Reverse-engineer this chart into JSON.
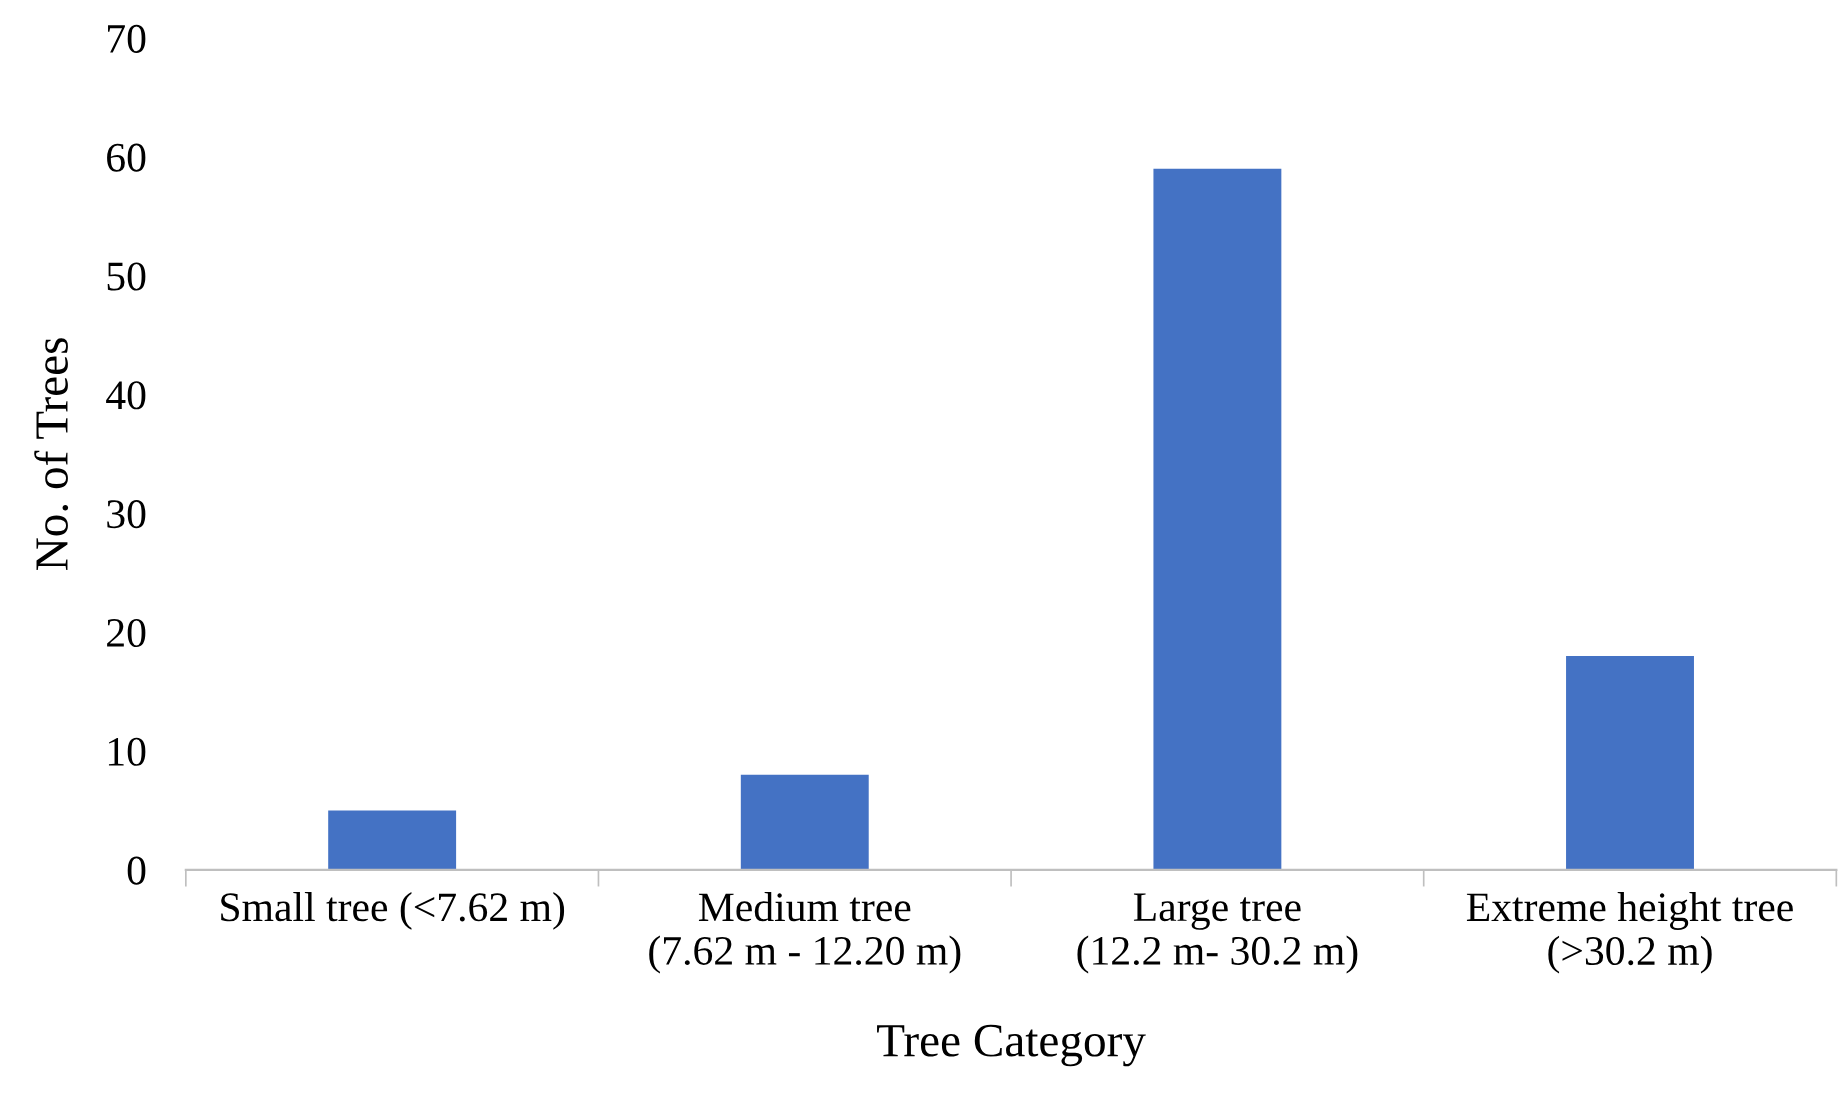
{
  "chart_data": {
    "type": "bar",
    "xlabel": "Tree Category",
    "ylabel": "No. of Trees",
    "categories": [
      "Small tree (<7.62 m)",
      "Medium tree\n(7.62 m - 12.20 m)",
      "Large tree\n(12.2 m- 30.2 m)",
      "Extreme height tree\n(>30.2 m)"
    ],
    "values": [
      5,
      8,
      59,
      18
    ],
    "color": "#4472c4",
    "ylim": [
      0,
      70
    ],
    "yticks": [
      0,
      10,
      20,
      30,
      40,
      50,
      60,
      70
    ],
    "grid": false,
    "legend": false
  }
}
